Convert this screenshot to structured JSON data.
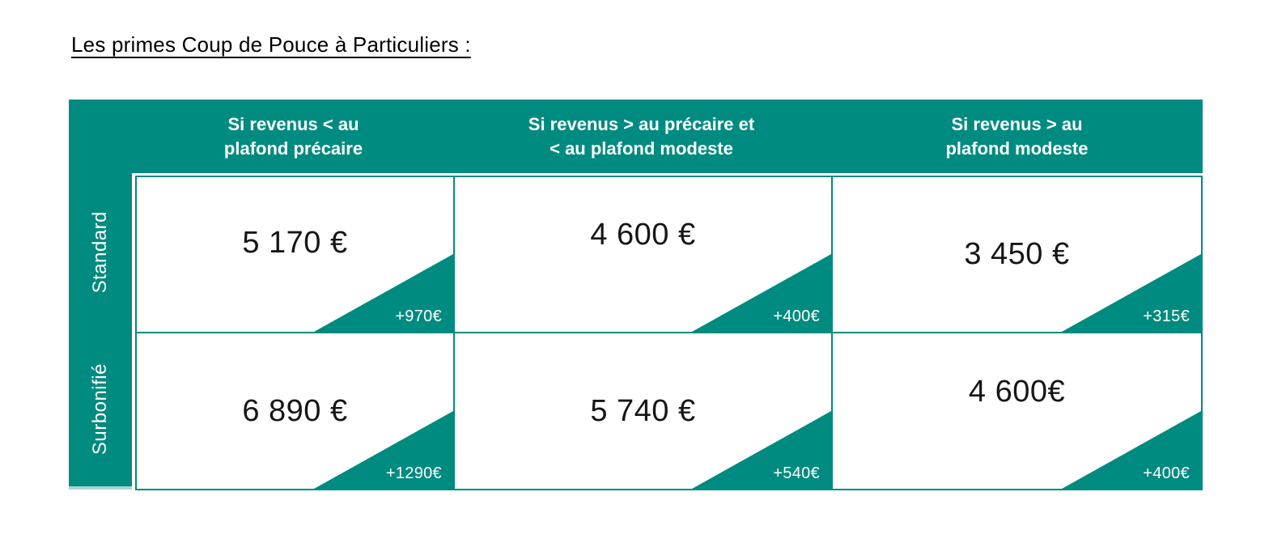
{
  "title": "Les primes Coup de Pouce à Particuliers :",
  "colors": {
    "teal": "#008B80",
    "teal_light": "#A9D6D1",
    "text": "#161616",
    "background": "#FFFFFF",
    "header_text": "#FFFFFF"
  },
  "table": {
    "column_headers": [
      {
        "line1": "Si revenus < au",
        "line2": "plafond précaire"
      },
      {
        "line1": "Si revenus > au précaire et",
        "line2": "< au plafond modeste"
      },
      {
        "line1": "Si revenus > au",
        "line2": "plafond modeste"
      }
    ],
    "rows": [
      {
        "label": "Standard",
        "cells": [
          {
            "value": "5 170 €",
            "bonus": "+970€"
          },
          {
            "value": "4 600 €",
            "bonus": "+400€"
          },
          {
            "value": "3 450 €",
            "bonus": "+315€"
          }
        ]
      },
      {
        "label": "Surbonifié",
        "cells": [
          {
            "value": "6 890 €",
            "bonus": "+1290€"
          },
          {
            "value": "5 740 €",
            "bonus": "+540€"
          },
          {
            "value": "4 600€",
            "bonus": "+400€"
          }
        ]
      }
    ]
  },
  "chart_data": {
    "type": "table",
    "title": "Les primes Coup de Pouce à Particuliers :",
    "columns": [
      "",
      "Si revenus < au plafond précaire",
      "Si revenus > au précaire et < au plafond modeste",
      "Si revenus > au plafond modeste"
    ],
    "rows": [
      [
        "Standard",
        "5 170 €",
        "4 600 €",
        "3 450 €"
      ],
      [
        "Surbonifié",
        "6 890 €",
        "5 740 €",
        "4 600€"
      ]
    ],
    "corner_bonuses": [
      [
        "+970€",
        "+400€",
        "+315€"
      ],
      [
        "+1290€",
        "+540€",
        "+400€"
      ]
    ]
  }
}
